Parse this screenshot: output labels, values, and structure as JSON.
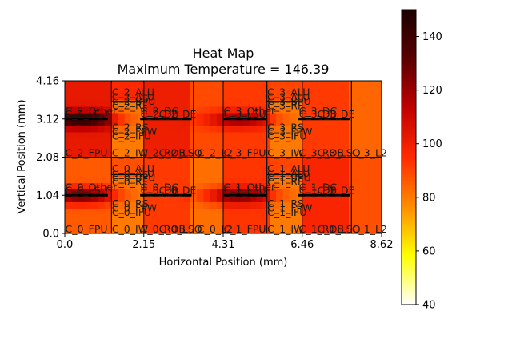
{
  "chart_data": {
    "type": "heatmap",
    "title": "Heat Map",
    "subtitle": "Maximum Temperature = 146.39",
    "xlabel": "Horizontal Position (mm)",
    "ylabel": "Vertical Position (mm)",
    "xlim": [
      0.0,
      8.62
    ],
    "ylim": [
      0.0,
      4.16
    ],
    "x_ticks": [
      "0.0",
      "2.15",
      "4.31",
      "6.46",
      "8.62"
    ],
    "y_ticks": [
      "0.0",
      "1.04",
      "2.08",
      "3.12",
      "4.16"
    ],
    "colorbar": {
      "min": 40,
      "max": 150,
      "ticks": [
        "40",
        "60",
        "80",
        "100",
        "120",
        "140"
      ],
      "colormap": "hot_r",
      "stops": [
        "#ffffff",
        "#ffff00",
        "#ff8c00",
        "#ff2a00",
        "#c00000",
        "#5a0000",
        "#1a0000"
      ]
    },
    "regions": [
      {
        "label": "C_0_FPU",
        "x": [
          0.0,
          1.27
        ],
        "y": [
          0.0,
          2.08
        ],
        "temp": 86
      },
      {
        "label": "C_0_ALU",
        "x": [
          1.27,
          2.15
        ],
        "y": [
          1.6,
          2.08
        ],
        "temp": 88
      },
      {
        "label": "C_0_RF",
        "x": [
          2.15,
          3.5
        ],
        "y": [
          0.0,
          2.08
        ],
        "temp": 92
      },
      {
        "label": "C_0_L2",
        "x": [
          3.5,
          4.31
        ],
        "y": [
          0.0,
          2.08
        ],
        "temp": 82
      },
      {
        "label": "C_1_FPU",
        "x": [
          4.31,
          5.5
        ],
        "y": [
          0.0,
          2.08
        ],
        "temp": 93
      },
      {
        "label": "C_1_ALU",
        "x": [
          5.5,
          6.46
        ],
        "y": [
          1.6,
          2.08
        ],
        "temp": 90
      },
      {
        "label": "C_1_RF",
        "x": [
          6.46,
          7.8
        ],
        "y": [
          0.0,
          2.08
        ],
        "temp": 97
      },
      {
        "label": "C_1_L2",
        "x": [
          7.8,
          8.62
        ],
        "y": [
          0.0,
          2.08
        ],
        "temp": 88
      },
      {
        "label": "C_2_FPU",
        "x": [
          0.0,
          1.27
        ],
        "y": [
          2.08,
          4.16
        ],
        "temp": 102
      },
      {
        "label": "C_2_ALU",
        "x": [
          1.27,
          2.15
        ],
        "y": [
          3.6,
          4.16
        ],
        "temp": 96
      },
      {
        "label": "C_2_RF",
        "x": [
          2.15,
          3.5
        ],
        "y": [
          2.08,
          4.16
        ],
        "temp": 100
      },
      {
        "label": "C_2_L2",
        "x": [
          3.5,
          4.31
        ],
        "y": [
          2.08,
          4.16
        ],
        "temp": 89
      },
      {
        "label": "C_3_FPU",
        "x": [
          4.31,
          5.5
        ],
        "y": [
          2.08,
          4.16
        ],
        "temp": 92
      },
      {
        "label": "C_3_ALU",
        "x": [
          5.5,
          6.46
        ],
        "y": [
          3.6,
          4.16
        ],
        "temp": 90
      },
      {
        "label": "C_3_RF",
        "x": [
          6.46,
          7.8
        ],
        "y": [
          2.08,
          4.16
        ],
        "temp": 92
      },
      {
        "label": "C_3_L2",
        "x": [
          7.8,
          8.62
        ],
        "y": [
          2.08,
          4.16
        ],
        "temp": 84
      }
    ],
    "hot_spots": [
      {
        "label": "C_0_Other",
        "x": 0.45,
        "y": 1.04,
        "temp": 128
      },
      {
        "label": "C_1_Other",
        "x": 4.75,
        "y": 1.04,
        "temp": 125
      },
      {
        "label": "C_2_Other",
        "x": 0.45,
        "y": 3.12,
        "temp": 146.39
      },
      {
        "label": "C_3_Other",
        "x": 4.75,
        "y": 3.12,
        "temp": 120
      }
    ],
    "annotations": [
      {
        "text": "C_0_FPU",
        "x": 0.0,
        "y": 0.0
      },
      {
        "text": "C_0_IW",
        "x": 1.27,
        "y": 0.0
      },
      {
        "text": "C_0_ROB",
        "x": 2.05,
        "y": 0.0
      },
      {
        "text": "C_0_LSQ",
        "x": 2.55,
        "y": 0.0
      },
      {
        "text": "C_0_L2",
        "x": 3.6,
        "y": 0.0
      },
      {
        "text": "C_0_ALU",
        "x": 1.27,
        "y": 1.66
      },
      {
        "text": "C_0_ALU",
        "x": 1.27,
        "y": 1.52
      },
      {
        "text": "C_0_BPU",
        "x": 1.27,
        "y": 1.4
      },
      {
        "text": "C_0_RF",
        "x": 1.27,
        "y": 1.28
      },
      {
        "text": "C_0_Other",
        "x": 0.0,
        "y": 1.14
      },
      {
        "text": "C_0_LSU",
        "x": 0.0,
        "y": 1.06
      },
      {
        "text": "C_0_DC",
        "x": 2.05,
        "y": 1.14
      },
      {
        "text": "C_0_DB",
        "x": 2.05,
        "y": 1.06
      },
      {
        "text": "C_0_DE",
        "x": 2.55,
        "y": 1.06
      },
      {
        "text": "C_0_RS",
        "x": 1.27,
        "y": 0.7
      },
      {
        "text": "C_0_FPW",
        "x": 1.27,
        "y": 0.58
      },
      {
        "text": "C_0_IFU",
        "x": 1.27,
        "y": 0.46
      },
      {
        "text": "C_1_FPU",
        "x": 4.31,
        "y": 0.0
      },
      {
        "text": "C_1_IW",
        "x": 5.5,
        "y": 0.0
      },
      {
        "text": "C_1_ROB",
        "x": 6.36,
        "y": 0.0
      },
      {
        "text": "C_1_LSQ",
        "x": 6.86,
        "y": 0.0
      },
      {
        "text": "C_1_L2",
        "x": 7.8,
        "y": 0.0
      },
      {
        "text": "C_1_ALU",
        "x": 5.5,
        "y": 1.66
      },
      {
        "text": "C_1_ALU",
        "x": 5.5,
        "y": 1.52
      },
      {
        "text": "C_1_BPU",
        "x": 5.5,
        "y": 1.4
      },
      {
        "text": "C_1_RF",
        "x": 5.5,
        "y": 1.28
      },
      {
        "text": "C_1_Other",
        "x": 4.31,
        "y": 1.14
      },
      {
        "text": "C_1_LSU",
        "x": 4.31,
        "y": 1.06
      },
      {
        "text": "C_1_DC",
        "x": 6.36,
        "y": 1.14
      },
      {
        "text": "C_1_DB",
        "x": 6.36,
        "y": 1.06
      },
      {
        "text": "C_1_DE",
        "x": 6.86,
        "y": 1.06
      },
      {
        "text": "C_1_RS",
        "x": 5.5,
        "y": 0.7
      },
      {
        "text": "C_1_FPW",
        "x": 5.5,
        "y": 0.58
      },
      {
        "text": "C_1_IFU",
        "x": 5.5,
        "y": 0.46
      },
      {
        "text": "C_2_FPU",
        "x": 0.0,
        "y": 2.08
      },
      {
        "text": "C_2_IW",
        "x": 1.27,
        "y": 2.08
      },
      {
        "text": "C_2_ROB",
        "x": 2.05,
        "y": 2.08
      },
      {
        "text": "C_2_LSQ",
        "x": 2.55,
        "y": 2.08
      },
      {
        "text": "C_2_L2",
        "x": 3.6,
        "y": 2.08
      },
      {
        "text": "C_2_ALU",
        "x": 1.27,
        "y": 3.74
      },
      {
        "text": "C_2_ALU",
        "x": 1.27,
        "y": 3.6
      },
      {
        "text": "C_2_BPU",
        "x": 1.27,
        "y": 3.48
      },
      {
        "text": "C_2_RF",
        "x": 1.27,
        "y": 3.36
      },
      {
        "text": "C_2_Other",
        "x": 0.0,
        "y": 3.22
      },
      {
        "text": "C_2_LSU",
        "x": 0.0,
        "y": 3.14
      },
      {
        "text": "C_2_DC",
        "x": 2.05,
        "y": 3.22
      },
      {
        "text": "C_2_DB",
        "x": 2.05,
        "y": 3.14
      },
      {
        "text": "C_2_DE",
        "x": 2.55,
        "y": 3.14
      },
      {
        "text": "C_2_RS",
        "x": 1.27,
        "y": 2.78
      },
      {
        "text": "C_2_FPW",
        "x": 1.27,
        "y": 2.66
      },
      {
        "text": "C_2_IFU",
        "x": 1.27,
        "y": 2.54
      },
      {
        "text": "C_3_FPU",
        "x": 4.31,
        "y": 2.08
      },
      {
        "text": "C_3_IW",
        "x": 5.5,
        "y": 2.08
      },
      {
        "text": "C_3_ROB",
        "x": 6.36,
        "y": 2.08
      },
      {
        "text": "C_3_LSQ",
        "x": 6.86,
        "y": 2.08
      },
      {
        "text": "C_3_L2",
        "x": 7.8,
        "y": 2.08
      },
      {
        "text": "C_3_ALU",
        "x": 5.5,
        "y": 3.74
      },
      {
        "text": "C_3_ALU",
        "x": 5.5,
        "y": 3.6
      },
      {
        "text": "C_3_BPU",
        "x": 5.5,
        "y": 3.48
      },
      {
        "text": "C_3_RF",
        "x": 5.5,
        "y": 3.36
      },
      {
        "text": "C_3_Other",
        "x": 4.31,
        "y": 3.22
      },
      {
        "text": "C_3_LSU",
        "x": 4.31,
        "y": 3.14
      },
      {
        "text": "C_3_DC",
        "x": 6.36,
        "y": 3.22
      },
      {
        "text": "C_3_DB",
        "x": 6.36,
        "y": 3.14
      },
      {
        "text": "C_3_DE",
        "x": 6.86,
        "y": 3.14
      },
      {
        "text": "C_3_RS",
        "x": 5.5,
        "y": 2.78
      },
      {
        "text": "C_3_FPW",
        "x": 5.5,
        "y": 2.66
      },
      {
        "text": "C_3_IFU",
        "x": 5.5,
        "y": 2.54
      }
    ]
  }
}
